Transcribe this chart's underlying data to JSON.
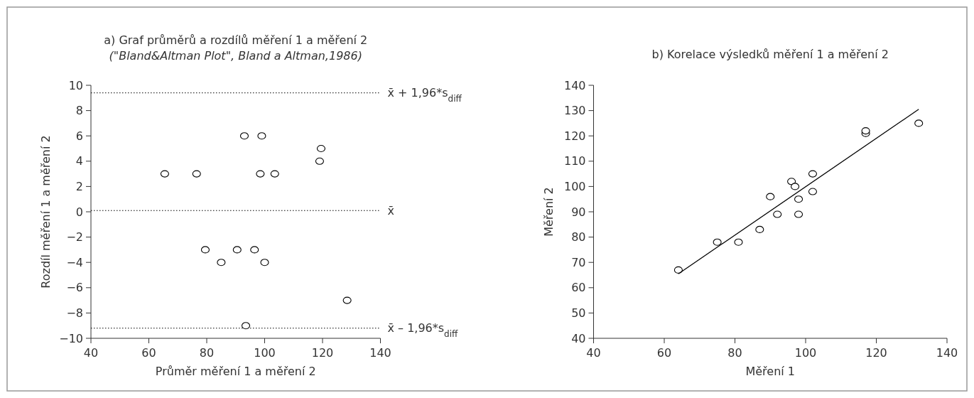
{
  "chart_data": [
    {
      "type": "scatter",
      "title": "a) Graf průměrů a rozdílů měření 1 a měření 2",
      "subtitle": "(\"Bland&Altman Plot\", Bland a Altman,1986)",
      "xlabel": "Průměr měření 1 a měření 2",
      "ylabel": "Rozdíl měření 1 a měření 2",
      "xlim": [
        40,
        140
      ],
      "xticks": [
        40,
        60,
        80,
        100,
        120,
        140
      ],
      "ylim": [
        -10,
        10
      ],
      "yticks": [
        -10,
        -8,
        -6,
        -4,
        -2,
        0,
        2,
        4,
        6,
        8,
        10
      ],
      "grid": false,
      "marker": "circle",
      "series": [
        {
          "color": "#000000",
          "x": [
            65.5,
            76.5,
            79.5,
            85,
            93,
            90.5,
            99,
            98.5,
            96.5,
            93.5,
            103.5,
            100,
            119,
            119.5,
            128.5
          ],
          "values": [
            3,
            3,
            -3,
            -4,
            6,
            -3,
            6,
            3,
            -3,
            -9,
            3,
            -4,
            4,
            5,
            -7
          ]
        }
      ],
      "ref_lines": [
        {
          "axis": "y",
          "value": 9.4,
          "label": "x̄ + 1,96*s$_{diff}$",
          "color": "#000000",
          "line_style": "dotted"
        },
        {
          "axis": "y",
          "value": 0.1,
          "label": "x̄",
          "color": "#000000",
          "line_style": "dotted"
        },
        {
          "axis": "y",
          "value": -9.2,
          "label": "x̄ – 1,96*s$_{diff}$",
          "color": "#000000",
          "line_style": "dotted"
        }
      ]
    },
    {
      "type": "scatter",
      "title": "b) Korelace výsledků měření 1 a měření 2",
      "xlabel": "Měření 1",
      "ylabel": "Měření 2",
      "xlim": [
        40,
        140
      ],
      "xticks": [
        40,
        60,
        80,
        100,
        120,
        140
      ],
      "ylim": [
        40,
        140
      ],
      "yticks": [
        40,
        50,
        60,
        70,
        80,
        90,
        100,
        110,
        120,
        130,
        140
      ],
      "grid": false,
      "marker": "circle",
      "series": [
        {
          "color": "#000000",
          "x": [
            64,
            75,
            81,
            87,
            90,
            92,
            96,
            97,
            98,
            98,
            102,
            102,
            117,
            117,
            132
          ],
          "values": [
            67,
            78,
            78,
            83,
            96,
            89,
            102,
            100,
            95,
            89,
            105,
            98,
            121,
            122,
            125
          ]
        },
        {
          "type": "line",
          "color": "#000000",
          "marker": "none",
          "line_style": "solid",
          "x": [
            64,
            132
          ],
          "values": [
            65.5,
            130.5
          ]
        }
      ]
    }
  ]
}
